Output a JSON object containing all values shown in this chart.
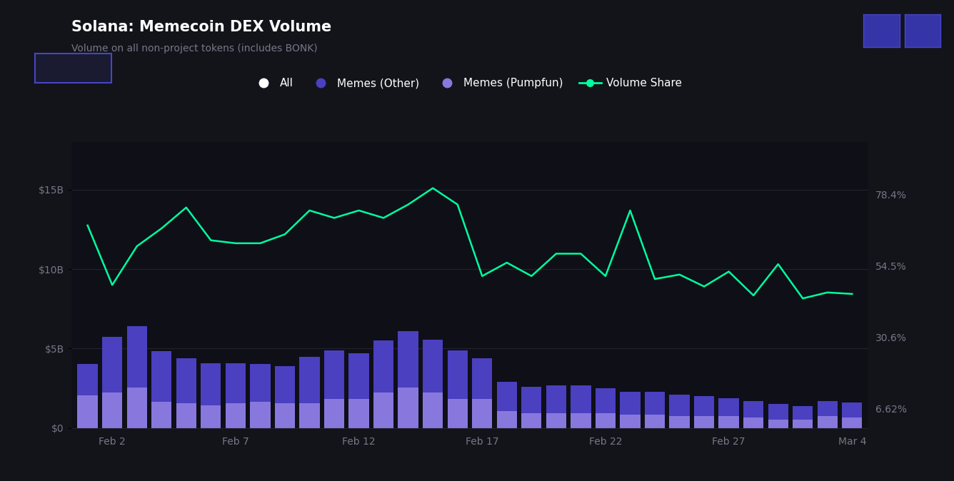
{
  "title": "Solana: Memecoin DEX Volume",
  "subtitle": "Volume on all non-project tokens (includes BONK)",
  "background_color": "#13131a",
  "plot_bg_color": "#0f0f18",
  "memes_pumpfun": [
    2.05,
    2.25,
    2.55,
    1.65,
    1.55,
    1.45,
    1.55,
    1.65,
    1.55,
    1.55,
    1.85,
    1.85,
    2.25,
    2.55,
    2.25,
    1.85,
    1.85,
    1.05,
    0.95,
    0.95,
    0.95,
    0.95,
    0.85,
    0.85,
    0.75,
    0.75,
    0.75,
    0.65,
    0.55,
    0.55,
    0.75,
    0.65
  ],
  "memes_other": [
    2.0,
    3.5,
    3.85,
    3.2,
    2.85,
    2.65,
    2.55,
    2.4,
    2.35,
    2.95,
    3.05,
    2.85,
    3.25,
    3.55,
    3.3,
    3.05,
    2.55,
    1.85,
    1.65,
    1.75,
    1.75,
    1.55,
    1.45,
    1.45,
    1.35,
    1.25,
    1.15,
    1.05,
    0.95,
    0.85,
    0.95,
    0.95
  ],
  "volume_pct": [
    68.0,
    48.0,
    61.0,
    67.0,
    74.0,
    63.0,
    62.0,
    62.0,
    65.0,
    73.0,
    70.5,
    73.0,
    70.5,
    75.0,
    80.5,
    75.0,
    51.0,
    55.5,
    51.0,
    58.5,
    58.5,
    51.0,
    73.0,
    50.0,
    51.5,
    47.5,
    52.5,
    44.5,
    55.0,
    43.5,
    45.5,
    45.0
  ],
  "color_pumpfun": "#8878dd",
  "color_other": "#4a40c0",
  "color_line": "#00ff9d",
  "color_axis_text": "#777788",
  "color_grid": "#22222e",
  "ylim_left": [
    0,
    18
  ],
  "ylim_right": [
    0,
    96
  ],
  "yticks_left": [
    0,
    5,
    10,
    15
  ],
  "ytick_labels_left": [
    "$0",
    "$5B",
    "$10B",
    "$15B"
  ],
  "yticks_right": [
    6.62,
    30.6,
    54.5,
    78.4
  ],
  "ytick_labels_right": [
    "6.62%",
    "30.6%",
    "54.5%",
    "78.4%"
  ],
  "xtick_positions": [
    1,
    6,
    11,
    16,
    21,
    26,
    31
  ],
  "xtick_labels": [
    "Feb 2",
    "Feb 7",
    "Feb 12",
    "Feb 17",
    "Feb 22",
    "Feb 27",
    "Mar 4"
  ],
  "legend_labels": [
    "All",
    "Memes (Other)",
    "Memes (Pumpfun)",
    "Volume Share"
  ],
  "legend_dot_colors": [
    "#ffffff",
    "#4a40c0",
    "#8878dd",
    "#00ff9d"
  ],
  "title_fontsize": 15,
  "subtitle_fontsize": 10,
  "axis_fontsize": 10,
  "legend_fontsize": 11
}
